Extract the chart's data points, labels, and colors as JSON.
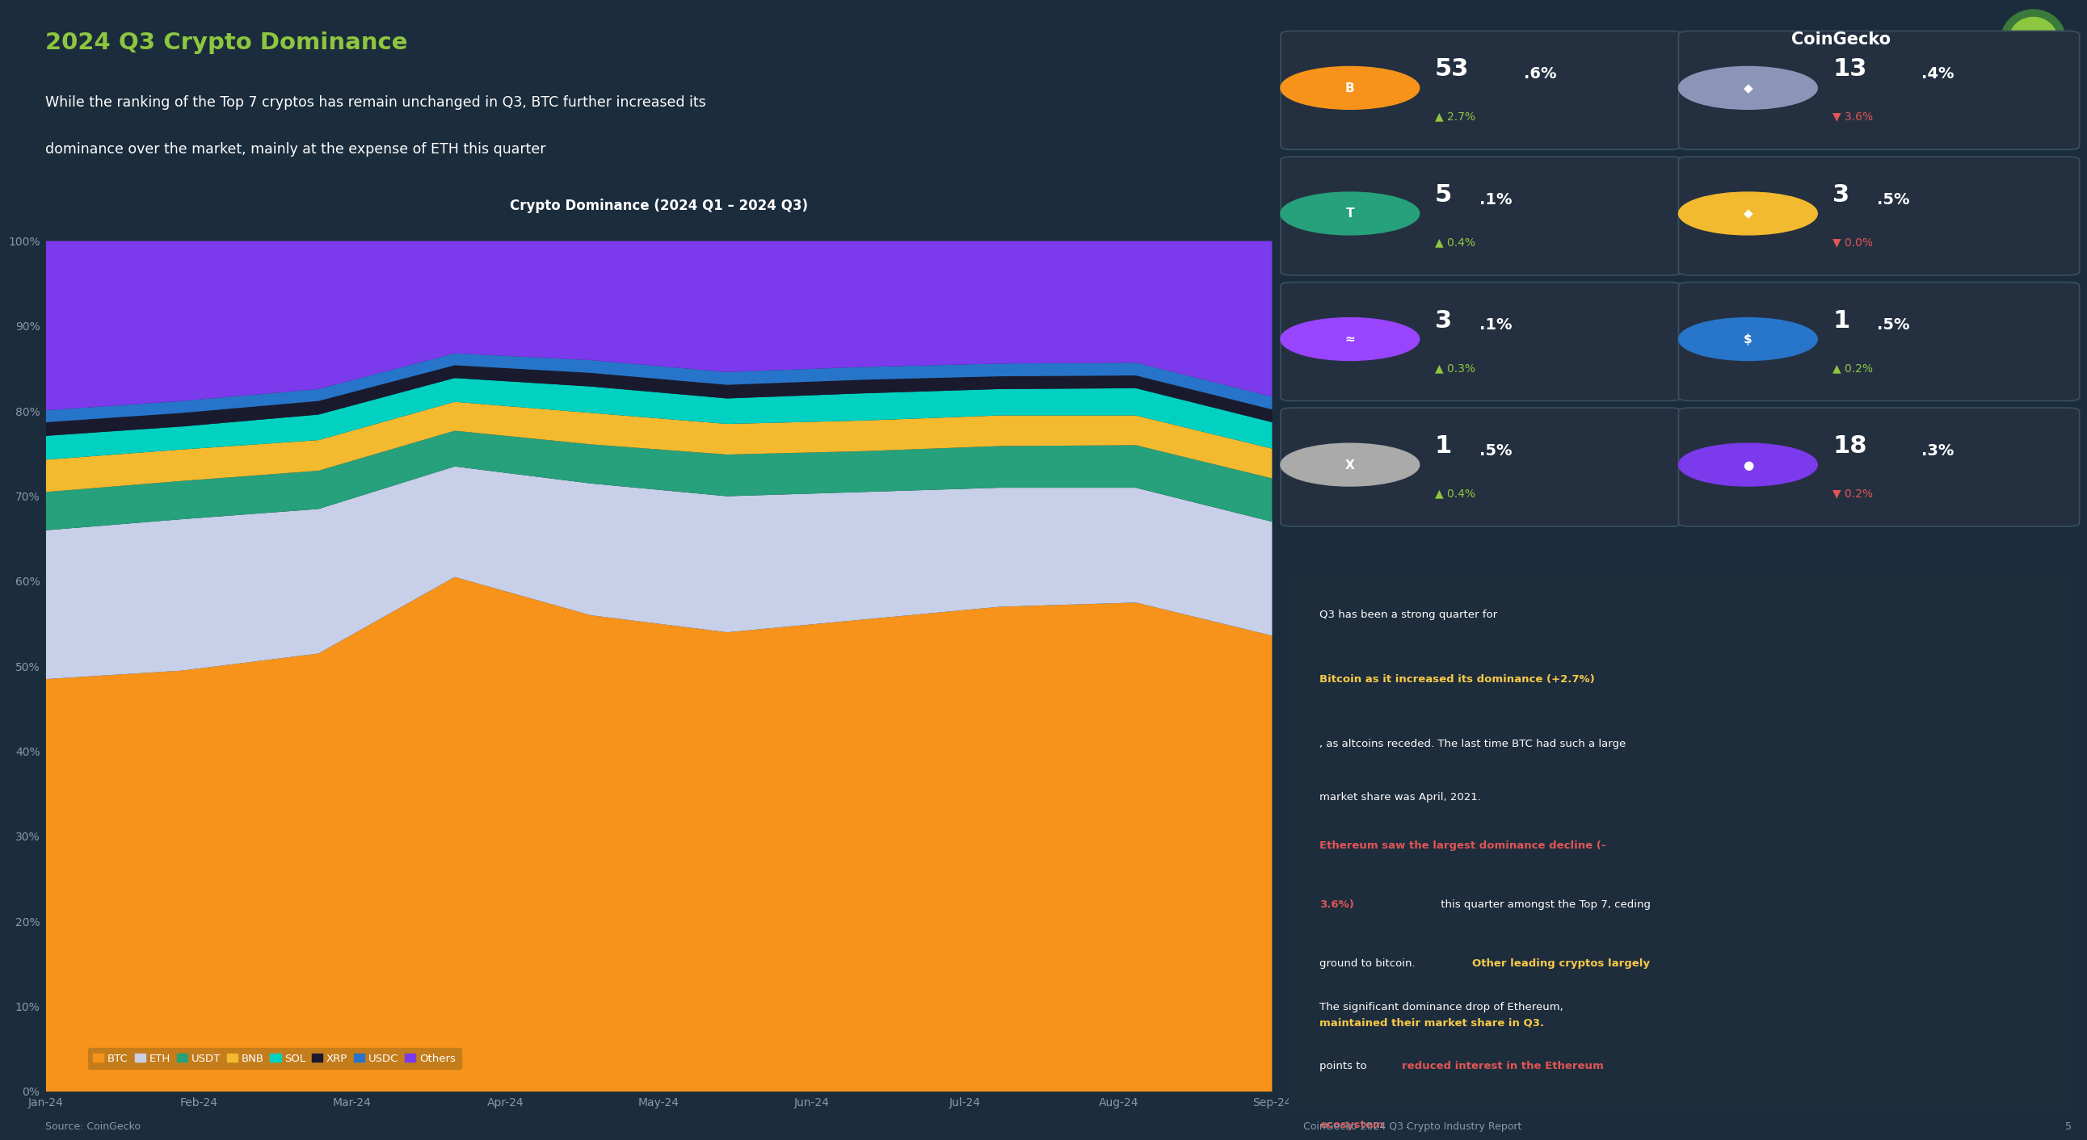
{
  "title": "2024 Q3 Crypto Dominance",
  "subtitle1": "While the ranking of the Top 7 cryptos has remain unchanged in Q3, BTC further increased its",
  "subtitle2": "dominance over the market, mainly at the expense of ETH this quarter",
  "chart_title": "Crypto Dominance (2024 Q1 – 2024 Q3)",
  "source": "Source: CoinGecko",
  "footer": "CoinGecko 2024 Q3 Crypto Industry Report",
  "page": "5",
  "bg": "#1b2c3c",
  "chart_bg": "#1e2e3e",
  "chart_header_bg": "#263444",
  "legend_bg": "#c47d28",
  "x_labels": [
    "Jan-24",
    "Feb-24",
    "Mar-24",
    "Apr-24",
    "May-24",
    "Jun-24",
    "Jul-24",
    "Aug-24",
    "Sep-24"
  ],
  "y_ticks": [
    0,
    10,
    20,
    30,
    40,
    50,
    60,
    70,
    80,
    90,
    100
  ],
  "legend_labels": [
    "BTC",
    "ETH",
    "USDT",
    "BNB",
    "SOL",
    "XRP",
    "USDC",
    "Others"
  ],
  "legend_colors": [
    "#f7931a",
    "#b0b8d0",
    "#26a17b",
    "#f3ba2f",
    "#00d1c1",
    "#1a1a2e",
    "#2775ca",
    "#7c3aed"
  ],
  "series": [
    "Others",
    "USDC",
    "XRP",
    "SOL",
    "BNB",
    "USDT",
    "ETH",
    "BTC"
  ],
  "series_colors": {
    "BTC": "#f7931a",
    "ETH": "#c8cfe8",
    "USDT": "#26a17b",
    "BNB": "#f3ba2f",
    "SOL": "#00d1c1",
    "XRP": "#1a1a2e",
    "USDC": "#2775ca",
    "Others": "#7c3aed"
  },
  "dominance_data": {
    "BTC": [
      48.5,
      49.5,
      51.5,
      60.5,
      56.0,
      54.0,
      55.5,
      57.0,
      57.5,
      53.6
    ],
    "ETH": [
      17.5,
      17.8,
      17.0,
      13.0,
      15.5,
      16.0,
      15.0,
      14.0,
      13.5,
      13.4
    ],
    "USDT": [
      4.5,
      4.5,
      4.5,
      4.2,
      4.6,
      4.9,
      4.8,
      4.9,
      5.0,
      5.1
    ],
    "BNB": [
      3.8,
      3.7,
      3.6,
      3.4,
      3.7,
      3.6,
      3.6,
      3.6,
      3.5,
      3.5
    ],
    "SOL": [
      2.8,
      2.7,
      3.0,
      2.8,
      3.1,
      3.0,
      3.2,
      3.1,
      3.2,
      3.1
    ],
    "XRP": [
      1.6,
      1.6,
      1.6,
      1.5,
      1.6,
      1.6,
      1.6,
      1.5,
      1.5,
      1.5
    ],
    "USDC": [
      1.4,
      1.4,
      1.4,
      1.4,
      1.5,
      1.5,
      1.5,
      1.5,
      1.5,
      1.5
    ],
    "Others": [
      19.9,
      18.8,
      17.4,
      13.2,
      14.0,
      15.4,
      14.8,
      14.4,
      14.3,
      18.3
    ]
  },
  "coins": [
    {
      "name": "BTC",
      "symbol": "B",
      "pct_main": "53",
      "pct_dec": ".6%",
      "change": "2.7%",
      "up": true,
      "icon_color": "#f7931a",
      "card_bg": "#2a1f10"
    },
    {
      "name": "ETH",
      "symbol": "◆",
      "pct_main": "13",
      "pct_dec": ".4%",
      "change": "3.6%",
      "up": false,
      "icon_color": "#8a95b8",
      "card_bg": "#1e2535"
    },
    {
      "name": "USDT",
      "symbol": "T",
      "pct_main": "5",
      "pct_dec": ".1%",
      "change": "0.4%",
      "up": true,
      "icon_color": "#26a17b",
      "card_bg": "#102520"
    },
    {
      "name": "BNB",
      "symbol": "◆",
      "pct_main": "3",
      "pct_dec": ".5%",
      "change": "0.0%",
      "up": false,
      "icon_color": "#f3ba2f",
      "card_bg": "#251e0a"
    },
    {
      "name": "SOL",
      "symbol": "≈",
      "pct_main": "3",
      "pct_dec": ".1%",
      "change": "0.3%",
      "up": true,
      "icon_color": "#9945ff",
      "card_bg": "#1a1030"
    },
    {
      "name": "USDC",
      "symbol": "$",
      "pct_main": "1",
      "pct_dec": ".5%",
      "change": "0.2%",
      "up": true,
      "icon_color": "#2775ca",
      "card_bg": "#0e1a30"
    },
    {
      "name": "XRP",
      "symbol": "X",
      "pct_main": "1",
      "pct_dec": ".5%",
      "change": "0.4%",
      "up": true,
      "icon_color": "#aaaaaa",
      "card_bg": "#1a1a1a"
    },
    {
      "name": "Others",
      "symbol": "●",
      "pct_main": "18",
      "pct_dec": ".3%",
      "change": "0.2%",
      "up": false,
      "icon_color": "#7c3aed",
      "card_bg": "#1a1030"
    }
  ],
  "text_color": "#ffffff",
  "muted_color": "#8899aa",
  "green_text": "#8dc63f",
  "red_text": "#e05555",
  "title_green": "#8dc63f",
  "yellow_highlight": "#f7c948",
  "num_points": 10
}
